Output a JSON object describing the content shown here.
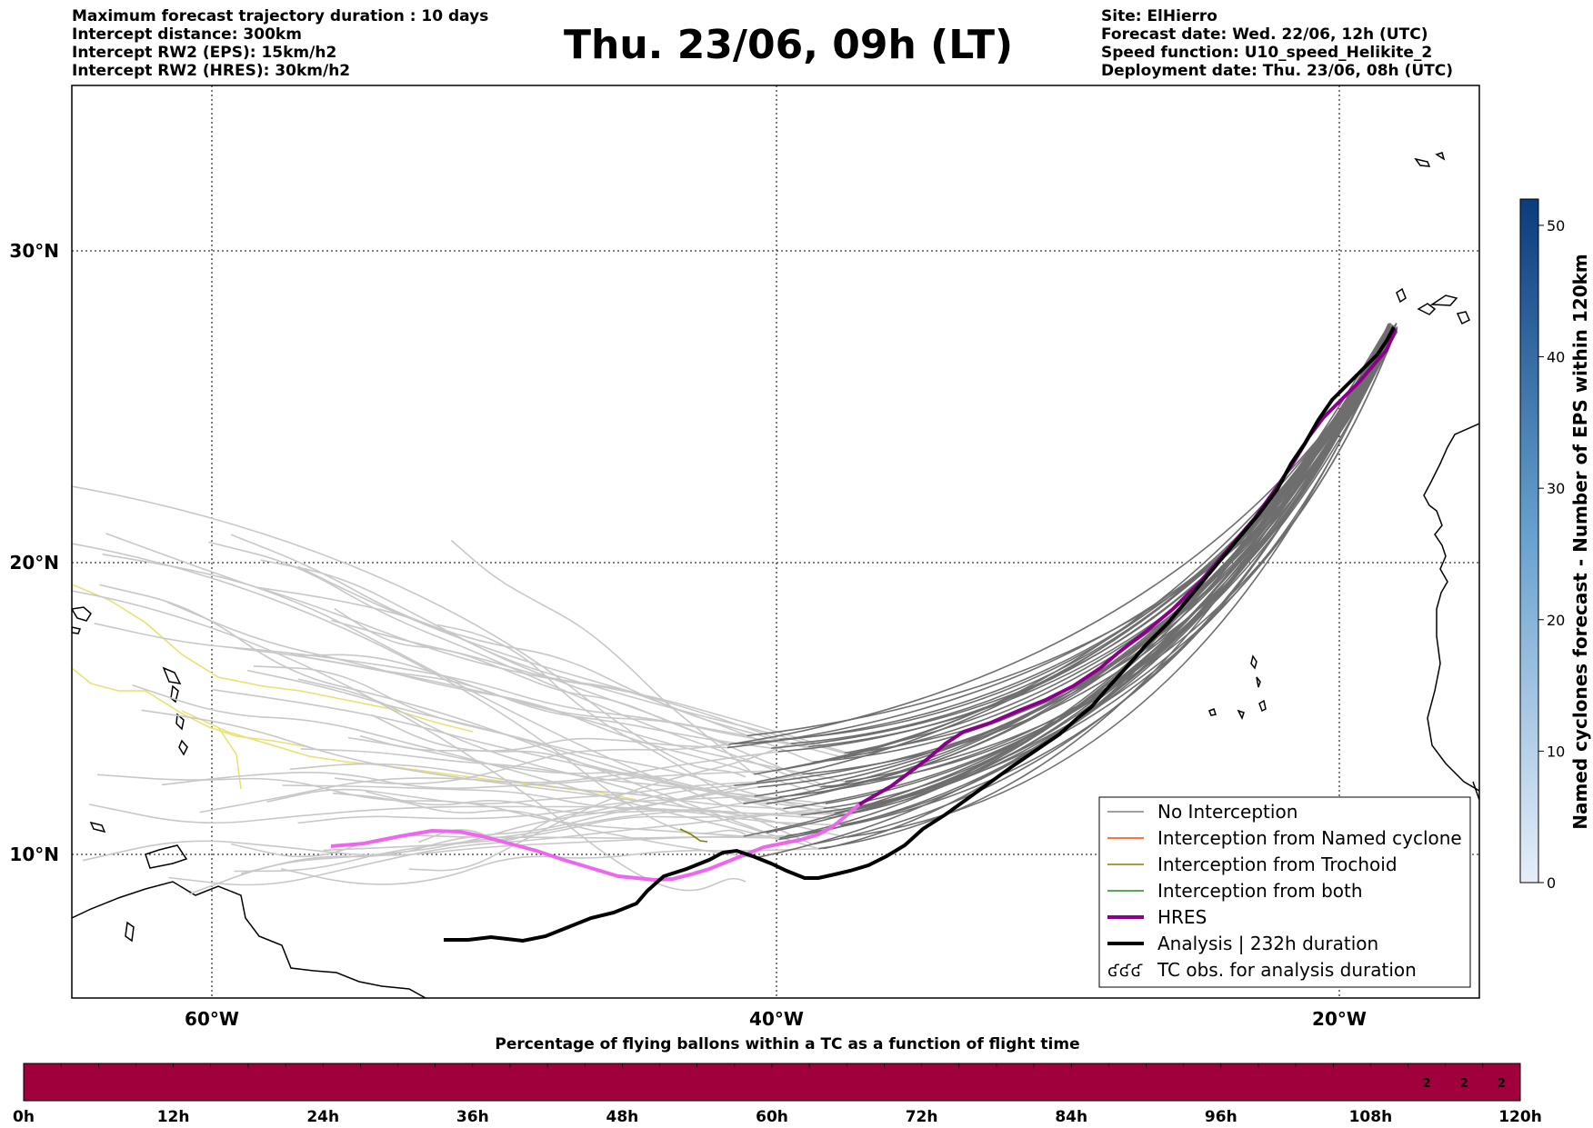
{
  "header": {
    "left_lines": [
      "Maximum forecast trajectory duration : 10 days",
      "Intercept distance: 300km",
      "Intercept RW2 (EPS):  15km/h2",
      "Intercept RW2 (HRES): 30km/h2"
    ],
    "title": "Thu. 23/06, 09h (LT)",
    "right_lines": [
      "Site: ElHierro",
      "Forecast date: Wed. 22/06, 12h (UTC)",
      "Speed function: U10_speed_Helikite_2",
      "Deployment date: Thu. 23/06, 08h (UTC)"
    ]
  },
  "map": {
    "lat_labels": [
      "30°N",
      "20°N",
      "10°N"
    ],
    "lon_labels": [
      "60°W",
      "40°W",
      "20°W"
    ],
    "colors": {
      "eps_before": "#c8c8c8",
      "eps_after": "#6e6e6e",
      "hres": "#8b008b",
      "hres_early": "#ee66ee",
      "analysis": "#000000",
      "trochoid": "#808000",
      "named_cyclone": "#ff4500",
      "both": "#228b22",
      "yellow_track": "#e8e070"
    }
  },
  "legend": {
    "items": [
      {
        "label": "No Interception",
        "color": "#808080",
        "width": 1.5
      },
      {
        "label": "Interception from Named cyclone",
        "color": "#ff4500",
        "width": 1.5
      },
      {
        "label": "Interception from Trochoid",
        "color": "#808000",
        "width": 1.5
      },
      {
        "label": "Interception from both",
        "color": "#228b22",
        "width": 1.5
      },
      {
        "label": "HRES",
        "color": "#8b008b",
        "width": 4
      },
      {
        "label": "Analysis | 232h duration",
        "color": "#000000",
        "width": 4
      },
      {
        "label": "TC obs. for analysis duration",
        "symbol": "ʛʛʛ"
      }
    ]
  },
  "colorbar": {
    "label": "Named cyclones forecast - Number of EPS within 120km",
    "ticks": [
      "0",
      "10",
      "20",
      "30",
      "40",
      "50"
    ]
  },
  "timeline": {
    "title": "Percentage of flying ballons within a TC as a function of flight time",
    "ticks": [
      "0h",
      "12h",
      "24h",
      "36h",
      "48h",
      "60h",
      "72h",
      "84h",
      "96h",
      "108h",
      "120h"
    ],
    "cell_values": [
      "2",
      "2",
      "2"
    ],
    "bar_color": "#a0003c"
  }
}
